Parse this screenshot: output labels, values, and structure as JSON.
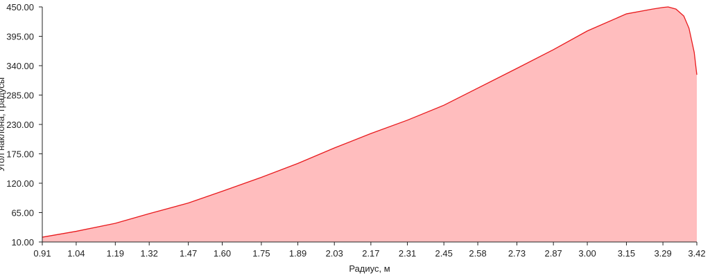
{
  "chart_data": {
    "type": "area",
    "title": "",
    "xlabel": "Радиус, м",
    "ylabel": "Угол наклона, градусы",
    "xlim": [
      0.91,
      3.42
    ],
    "ylim": [
      10.0,
      450.0
    ],
    "x_ticks": [
      "0.91",
      "1.04",
      "1.19",
      "1.32",
      "1.47",
      "1.60",
      "1.75",
      "1.89",
      "2.03",
      "2.17",
      "2.31",
      "2.45",
      "2.58",
      "2.73",
      "2.87",
      "3.00",
      "3.15",
      "3.29",
      "3.42"
    ],
    "y_ticks": [
      "10.00",
      "65.00",
      "120.00",
      "175.00",
      "230.00",
      "285.00",
      "340.00",
      "395.00",
      "450.00"
    ],
    "grid": false,
    "colors": {
      "line": "#e8191c",
      "fill": "#ffbdbe",
      "axis": "#222222"
    },
    "series": [
      {
        "x": [
          0.91,
          1.04,
          1.19,
          1.32,
          1.47,
          1.6,
          1.75,
          1.89,
          2.03,
          2.17,
          2.31,
          2.45,
          2.58,
          2.73,
          2.87,
          3.0,
          3.15,
          3.25,
          3.29,
          3.31,
          3.34,
          3.37,
          3.39,
          3.41,
          3.42
        ],
        "y": [
          19,
          30,
          45,
          63,
          83,
          105,
          131,
          157,
          186,
          213,
          238,
          266,
          298,
          335,
          370,
          405,
          437,
          446,
          449,
          450,
          446,
          433,
          410,
          365,
          323
        ]
      }
    ]
  }
}
